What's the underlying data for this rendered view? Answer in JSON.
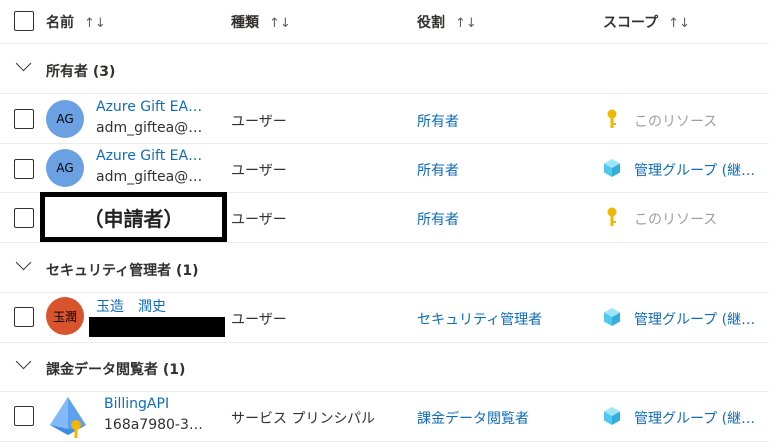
{
  "header": {
    "name": "名前",
    "type": "種類",
    "role": "役割",
    "scope": "スコープ",
    "sort_glyph": "↑↓"
  },
  "groups": [
    {
      "label": "所有者 (3)",
      "rows": [
        {
          "initials": "AG",
          "avatar_color": "#6ba1e3",
          "name": "Azure Gift EA…",
          "sub": "adm_giftea@…",
          "type": "ユーザー",
          "role": "所有者",
          "scope": "このリソース",
          "scope_icon": "key-icon"
        },
        {
          "initials": "AG",
          "avatar_color": "#6ba1e3",
          "name": "Azure Gift EA…",
          "sub": "adm_giftea@…",
          "type": "ユーザー",
          "role": "所有者",
          "scope": "管理グループ (継…",
          "scope_icon": "management-group-cube-icon"
        },
        {
          "redacted_label": "（申請者）",
          "type": "ユーザー",
          "role": "所有者",
          "scope": "このリソース",
          "scope_icon": "key-icon"
        }
      ]
    },
    {
      "label": "セキュリティ管理者 (1)",
      "rows": [
        {
          "initials": "玉潤",
          "avatar_color": "#d9532c",
          "name": "玉造　潤史",
          "type": "ユーザー",
          "role": "セキュリティ管理者",
          "scope": "管理グループ (継…",
          "scope_icon": "management-group-cube-icon"
        }
      ]
    },
    {
      "label": "課金データ閲覧者 (1)",
      "rows": [
        {
          "name": "BillingAPI",
          "sub": "168a7980-3…",
          "type": "サービス プリンシパル",
          "role": "課金データ閲覧者",
          "scope": "管理グループ (継…",
          "scope_icon": "management-group-cube-icon"
        }
      ]
    }
  ]
}
